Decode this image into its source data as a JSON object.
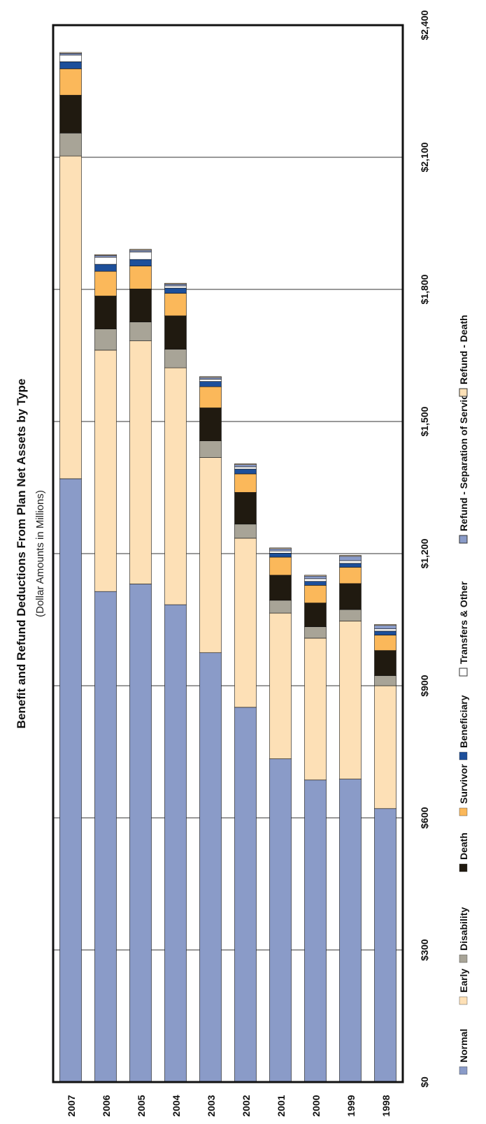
{
  "chart_data": {
    "type": "bar",
    "orientation": "horizontal",
    "stacked": true,
    "title": "Benefit and Refund Deductions From Plan Net Assets by Type",
    "subtitle": "(Dollar Amounts in Millions)",
    "xlim": [
      0,
      2400
    ],
    "x_ticks": [
      0,
      300,
      600,
      900,
      1200,
      1500,
      1800,
      2100,
      2400
    ],
    "x_tick_labels": [
      "$0",
      "$300",
      "$600",
      "$900",
      "$1,200",
      "$1,500",
      "$1,800",
      "$2,100",
      "$2,400"
    ],
    "grid": true,
    "legend_position": "bottom",
    "categories": [
      "2007",
      "2006",
      "2005",
      "2004",
      "2003",
      "2002",
      "2001",
      "2000",
      "1999",
      "1998"
    ],
    "series": [
      {
        "name": "Normal",
        "color": "#8a9bc8",
        "values": [
          1370,
          1114,
          1131,
          1084,
          975,
          851,
          734,
          686,
          688,
          621
        ]
      },
      {
        "name": "Early",
        "color": "#fde0b6",
        "values": [
          733,
          548,
          552,
          538,
          443,
          384,
          331,
          322,
          359,
          279
        ]
      },
      {
        "name": "Disability",
        "color": "#a8a497",
        "values": [
          52,
          48,
          43,
          42,
          38,
          32,
          29,
          26,
          26,
          23
        ]
      },
      {
        "name": "Death",
        "color": "#201a10",
        "values": [
          86,
          75,
          75,
          76,
          75,
          72,
          57,
          54,
          59,
          57
        ]
      },
      {
        "name": "Survivor",
        "color": "#fbb85a",
        "values": [
          60,
          56,
          52,
          51,
          48,
          42,
          41,
          40,
          37,
          35
        ]
      },
      {
        "name": "Beneficiary",
        "color": "#1d4f9a",
        "values": [
          16,
          16,
          15,
          12,
          12,
          11,
          9,
          9,
          9,
          9
        ]
      },
      {
        "name": "Transfers & Other",
        "color": "#ffffff",
        "values": [
          15,
          16,
          17,
          5,
          5,
          5,
          5,
          6,
          6,
          5
        ]
      },
      {
        "name": "Refund - Separation of Service",
        "color": "#8a9bc8",
        "values": [
          4,
          4,
          4,
          4,
          4,
          5,
          5,
          6,
          10,
          8
        ]
      },
      {
        "name": "Refund - Death",
        "color": "#fde0b6",
        "values": [
          2,
          2,
          2,
          2,
          2,
          2,
          2,
          2,
          2,
          2
        ]
      }
    ]
  }
}
